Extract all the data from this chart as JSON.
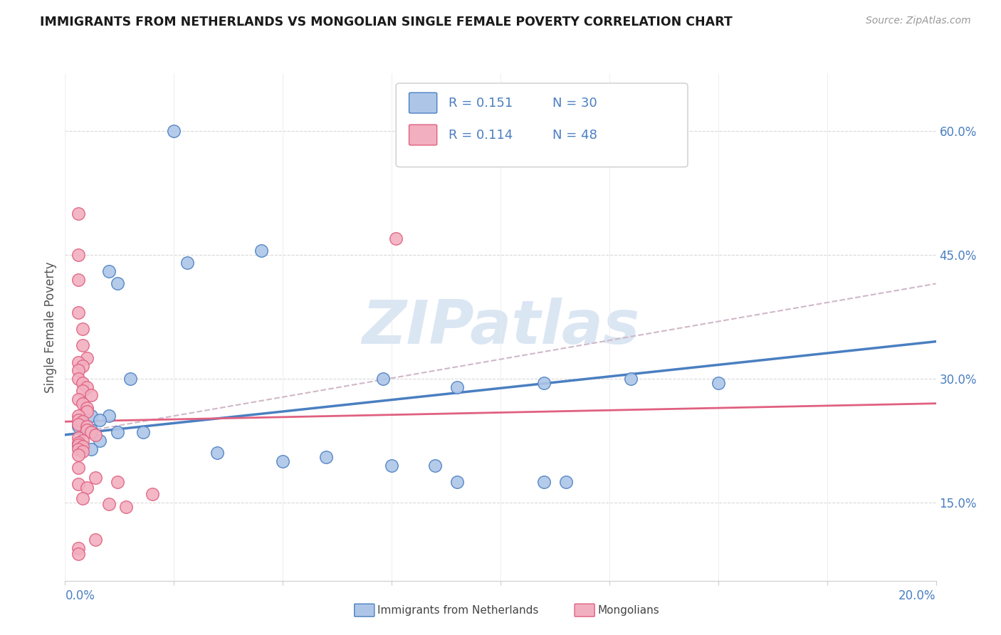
{
  "title": "IMMIGRANTS FROM NETHERLANDS VS MONGOLIAN SINGLE FEMALE POVERTY CORRELATION CHART",
  "source": "Source: ZipAtlas.com",
  "ylabel": "Single Female Poverty",
  "legend1_label": "Immigrants from Netherlands",
  "legend2_label": "Mongolians",
  "R1": "0.151",
  "N1": "30",
  "R2": "0.114",
  "N2": "48",
  "color_blue": "#adc6e8",
  "color_pink": "#f2afc0",
  "line_blue": "#4a7fc1",
  "line_pink": "#e06080",
  "line_dashed_color": "#d0b8c8",
  "watermark": "ZIPatlas",
  "blue_points": [
    [
      0.025,
      0.6
    ],
    [
      0.01,
      0.43
    ],
    [
      0.012,
      0.415
    ],
    [
      0.028,
      0.44
    ],
    [
      0.015,
      0.3
    ],
    [
      0.073,
      0.3
    ],
    [
      0.09,
      0.29
    ],
    [
      0.11,
      0.295
    ],
    [
      0.13,
      0.3
    ],
    [
      0.01,
      0.255
    ],
    [
      0.006,
      0.255
    ],
    [
      0.004,
      0.245
    ],
    [
      0.008,
      0.25
    ],
    [
      0.003,
      0.242
    ],
    [
      0.006,
      0.238
    ],
    [
      0.012,
      0.235
    ],
    [
      0.018,
      0.235
    ],
    [
      0.008,
      0.225
    ],
    [
      0.003,
      0.22
    ],
    [
      0.006,
      0.215
    ],
    [
      0.035,
      0.21
    ],
    [
      0.06,
      0.205
    ],
    [
      0.05,
      0.2
    ],
    [
      0.085,
      0.195
    ],
    [
      0.075,
      0.195
    ],
    [
      0.15,
      0.295
    ],
    [
      0.09,
      0.175
    ],
    [
      0.11,
      0.175
    ],
    [
      0.115,
      0.175
    ],
    [
      0.045,
      0.455
    ]
  ],
  "pink_points": [
    [
      0.003,
      0.5
    ],
    [
      0.003,
      0.45
    ],
    [
      0.003,
      0.42
    ],
    [
      0.003,
      0.38
    ],
    [
      0.076,
      0.47
    ],
    [
      0.004,
      0.36
    ],
    [
      0.004,
      0.34
    ],
    [
      0.005,
      0.325
    ],
    [
      0.003,
      0.32
    ],
    [
      0.004,
      0.315
    ],
    [
      0.003,
      0.31
    ],
    [
      0.003,
      0.3
    ],
    [
      0.004,
      0.295
    ],
    [
      0.005,
      0.29
    ],
    [
      0.004,
      0.285
    ],
    [
      0.006,
      0.28
    ],
    [
      0.003,
      0.275
    ],
    [
      0.004,
      0.27
    ],
    [
      0.005,
      0.265
    ],
    [
      0.005,
      0.26
    ],
    [
      0.003,
      0.255
    ],
    [
      0.003,
      0.25
    ],
    [
      0.004,
      0.248
    ],
    [
      0.003,
      0.245
    ],
    [
      0.005,
      0.242
    ],
    [
      0.005,
      0.238
    ],
    [
      0.006,
      0.235
    ],
    [
      0.007,
      0.232
    ],
    [
      0.003,
      0.228
    ],
    [
      0.004,
      0.225
    ],
    [
      0.003,
      0.222
    ],
    [
      0.003,
      0.22
    ],
    [
      0.004,
      0.218
    ],
    [
      0.003,
      0.215
    ],
    [
      0.004,
      0.212
    ],
    [
      0.003,
      0.208
    ],
    [
      0.003,
      0.192
    ],
    [
      0.007,
      0.18
    ],
    [
      0.003,
      0.172
    ],
    [
      0.005,
      0.168
    ],
    [
      0.02,
      0.16
    ],
    [
      0.004,
      0.155
    ],
    [
      0.01,
      0.148
    ],
    [
      0.014,
      0.145
    ],
    [
      0.012,
      0.175
    ],
    [
      0.007,
      0.105
    ],
    [
      0.003,
      0.095
    ],
    [
      0.003,
      0.088
    ]
  ],
  "xlim": [
    0.0,
    0.2
  ],
  "ylim": [
    0.055,
    0.67
  ],
  "right_ytick_vals": [
    0.6,
    0.45,
    0.3,
    0.15
  ],
  "right_ytick_labels": [
    "60.0%",
    "45.0%",
    "30.0%",
    "15.0%"
  ],
  "blue_line_x": [
    0.0,
    0.2
  ],
  "blue_line_y": [
    0.232,
    0.345
  ],
  "pink_line_x": [
    0.0,
    0.2
  ],
  "pink_line_y": [
    0.248,
    0.27
  ],
  "dashed_line_x": [
    0.0,
    0.2
  ],
  "dashed_line_y": [
    0.232,
    0.415
  ]
}
